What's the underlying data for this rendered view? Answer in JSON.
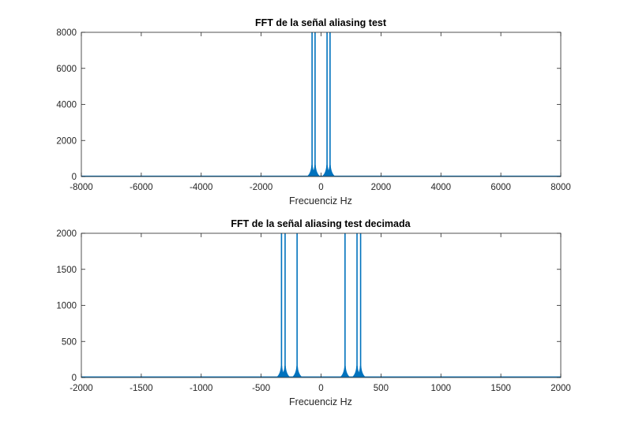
{
  "chart_data": [
    {
      "type": "line",
      "title": "FFT de la señal aliasing test",
      "xlabel": "Frecuenciz Hz",
      "ylabel": "",
      "xlim": [
        -8000,
        8000
      ],
      "ylim": [
        0,
        8000
      ],
      "xticks": [
        "-8000",
        "-6000",
        "-4000",
        "-2000",
        "0",
        "2000",
        "4000",
        "6000",
        "8000"
      ],
      "yticks": [
        "0",
        "2000",
        "4000",
        "6000",
        "8000"
      ],
      "grid": false,
      "color": "#0072BD",
      "baseline": 25,
      "peaks": [
        {
          "x": -300,
          "y": 8000
        },
        {
          "x": -200,
          "y": 8000
        },
        {
          "x": 200,
          "y": 8000
        },
        {
          "x": 300,
          "y": 8000
        }
      ]
    },
    {
      "type": "line",
      "title": "FFT de la señal aliasing test decimada",
      "xlabel": "Frecuenciz Hz",
      "ylabel": "",
      "xlim": [
        -2000,
        2000
      ],
      "ylim": [
        0,
        2000
      ],
      "xticks": [
        "-2000",
        "-1500",
        "-1000",
        "-500",
        "0",
        "500",
        "1000",
        "1500",
        "2000"
      ],
      "yticks": [
        "0",
        "500",
        "1000",
        "1500",
        "2000"
      ],
      "grid": false,
      "color": "#0072BD",
      "baseline": 8,
      "peaks": [
        {
          "x": -330,
          "y": 2000
        },
        {
          "x": -300,
          "y": 2000
        },
        {
          "x": -200,
          "y": 2000
        },
        {
          "x": 200,
          "y": 2000
        },
        {
          "x": 300,
          "y": 2000
        },
        {
          "x": 330,
          "y": 2000
        }
      ]
    }
  ]
}
